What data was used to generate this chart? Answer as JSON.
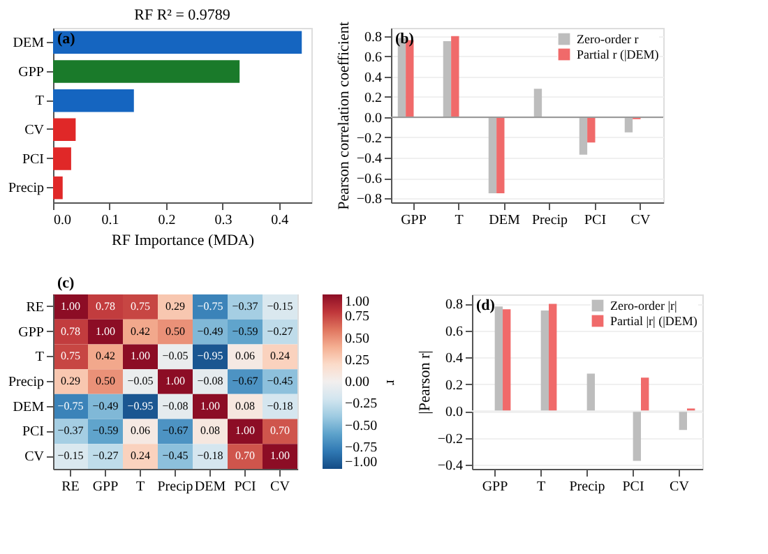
{
  "chart_data": [
    {
      "type": "bar",
      "orientation": "horizontal",
      "title": "RF R² = 0.9789",
      "xlabel": "RF Importance (MDA)",
      "annotations": [
        "(a)"
      ],
      "categories": [
        "DEM",
        "GPP",
        "T",
        "CV",
        "PCI",
        "Precip"
      ],
      "values": [
        0.44,
        0.33,
        0.143,
        0.04,
        0.032,
        0.017
      ],
      "colors": [
        "#1565c0",
        "#1a7a2a",
        "#1565c0",
        "#e02828",
        "#e02828",
        "#e02828"
      ],
      "xlim": [
        0,
        0.457
      ],
      "xticks": [
        {
          "value": 0,
          "label": "0.0"
        },
        0.1,
        0.2,
        0.3,
        0.4
      ],
      "grid": false
    },
    {
      "type": "bar",
      "ylabel": "Pearson correlation coefficient",
      "annotations": [
        "(b)"
      ],
      "legend": "top right",
      "categories": [
        "GPP",
        "T",
        "DEM",
        "Precip",
        "PCI",
        "CV"
      ],
      "series": [
        {
          "name": "Zero-order r",
          "color": "#bdbdbd",
          "values": [
            0.78,
            0.75,
            -0.75,
            0.28,
            -0.37,
            -0.15
          ]
        },
        {
          "name": "Partial r (|DEM)",
          "color": "#f06a6a",
          "values": [
            0.76,
            0.8,
            -0.75,
            null,
            -0.25,
            -0.02
          ]
        }
      ],
      "ylim": [
        -0.84,
        0.88
      ],
      "yticks": [
        -0.8,
        -0.6,
        -0.4,
        -0.2,
        {
          "value": 0,
          "label": "0.0"
        },
        0.2,
        0.4,
        0.6,
        0.8
      ],
      "ref_lines": [
        {
          "axis": "y",
          "value": 0,
          "color": "#999999"
        }
      ],
      "grid": "y"
    },
    {
      "type": "heatmap",
      "clabel": "r",
      "annotations": [
        "(c)"
      ],
      "categories": [
        "RE",
        "GPP",
        "T",
        "Precip",
        "DEM",
        "PCI",
        "CV"
      ],
      "y_categories": [
        "RE",
        "GPP",
        "T",
        "Precip",
        "DEM",
        "PCI",
        "CV"
      ],
      "cells": [
        [
          1.0,
          0.78,
          0.75,
          0.29,
          -0.75,
          -0.37,
          -0.15
        ],
        [
          0.78,
          1.0,
          0.42,
          0.5,
          -0.49,
          -0.59,
          -0.27
        ],
        [
          0.75,
          0.42,
          1.0,
          -0.05,
          -0.95,
          0.06,
          0.24
        ],
        [
          0.29,
          0.5,
          -0.05,
          1.0,
          -0.08,
          -0.67,
          -0.45
        ],
        [
          -0.75,
          -0.49,
          -0.95,
          -0.08,
          1.0,
          0.08,
          -0.18
        ],
        [
          -0.37,
          -0.59,
          0.06,
          -0.67,
          0.08,
          1.0,
          0.7
        ],
        [
          -0.15,
          -0.27,
          0.24,
          -0.45,
          -0.18,
          0.7,
          1.0
        ]
      ],
      "cell_labels": [
        [
          "1.00",
          "0.78",
          "0.75",
          "0.29",
          "−0.75",
          "−0.37",
          "−0.15"
        ],
        [
          "0.78",
          "1.00",
          "0.42",
          "0.50",
          "−0.49",
          "−0.59",
          "−0.27"
        ],
        [
          "0.75",
          "0.42",
          "1.00",
          "−0.05",
          "−0.95",
          "0.06",
          "0.24"
        ],
        [
          "0.29",
          "0.50",
          "−0.05",
          "1.00",
          "−0.08",
          "−0.67",
          "−0.45"
        ],
        [
          "−0.75",
          "−0.49",
          "−0.95",
          "−0.08",
          "1.00",
          "0.08",
          "−0.18"
        ],
        [
          "−0.37",
          "−0.59",
          "0.06",
          "−0.67",
          "0.08",
          "1.00",
          "0.70"
        ],
        [
          "−0.15",
          "−0.27",
          "0.24",
          "−0.45",
          "−0.18",
          "0.70",
          "1.00"
        ]
      ],
      "clim": [
        -1,
        1
      ],
      "cticks": [
        {
          "value": -1,
          "label": "−1.00"
        },
        {
          "value": -0.75,
          "label": "−0.75"
        },
        {
          "value": -0.5,
          "label": "−0.50"
        },
        {
          "value": -0.25,
          "label": "−0.25"
        },
        {
          "value": 0,
          "label": "0.00"
        },
        {
          "value": 0.25,
          "label": "0.25"
        },
        {
          "value": 0.5,
          "label": "0.50"
        },
        {
          "value": 0.75,
          "label": "0.75"
        },
        {
          "value": 1,
          "label": "1.00"
        }
      ]
    },
    {
      "type": "bar",
      "ylabel": "|Pearson r|",
      "annotations": [
        "(d)"
      ],
      "legend": "top right",
      "categories": [
        "GPP",
        "T",
        "Precip",
        "PCI",
        "CV"
      ],
      "series": [
        {
          "name": "Zero-order |r|",
          "color": "#bdbdbd",
          "values": [
            0.78,
            0.75,
            0.28,
            -0.37,
            -0.14
          ]
        },
        {
          "name": "Partial |r| (|DEM)",
          "color": "#f06a6a",
          "values": [
            0.76,
            0.8,
            null,
            0.25,
            0.02
          ]
        }
      ],
      "ylim": [
        -0.43,
        0.87
      ],
      "yticks": [
        -0.4,
        -0.2,
        {
          "value": 0,
          "label": "0.0"
        },
        0.2,
        0.4,
        0.6,
        0.8
      ],
      "ref_lines": [
        {
          "axis": "y",
          "value": 0,
          "color": "#eeeeee"
        }
      ],
      "grid": "y"
    }
  ]
}
